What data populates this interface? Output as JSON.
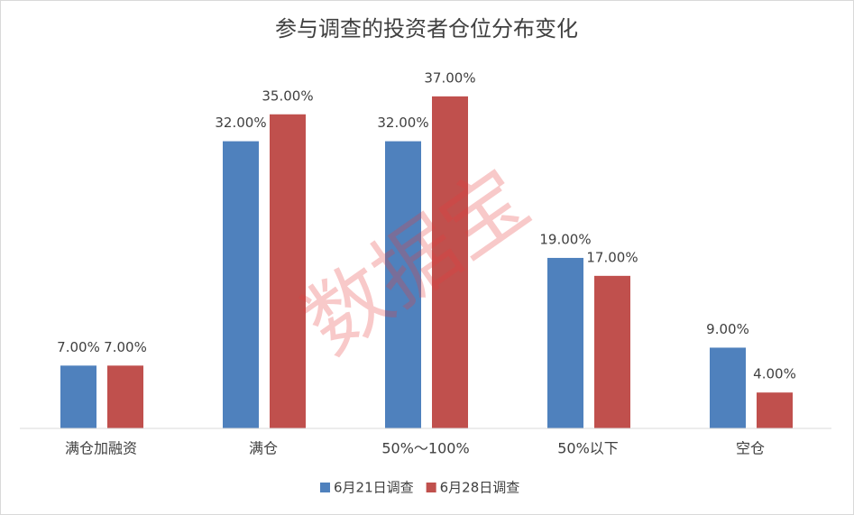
{
  "chart_data": {
    "type": "bar",
    "title": "参与调查的投资者仓位分布变化",
    "categories": [
      "满仓加融资",
      "满仓",
      "50%～100%",
      "50%以下",
      "空仓"
    ],
    "series": [
      {
        "name": "6月21日调查",
        "color": "#4f81bd",
        "values": [
          7,
          32,
          32,
          19,
          9
        ],
        "value_labels": [
          "7.00%",
          "32.00%",
          "32.00%",
          "19.00%",
          "9.00%"
        ]
      },
      {
        "name": "6月28日调查",
        "color": "#c0504d",
        "values": [
          7,
          35,
          37,
          17,
          4
        ],
        "value_labels": [
          "7.00%",
          "35.00%",
          "37.00%",
          "17.00%",
          "4.00%"
        ]
      }
    ],
    "ylim": [
      0,
      40
    ],
    "legend": "bottom",
    "watermark": "数据宝"
  }
}
